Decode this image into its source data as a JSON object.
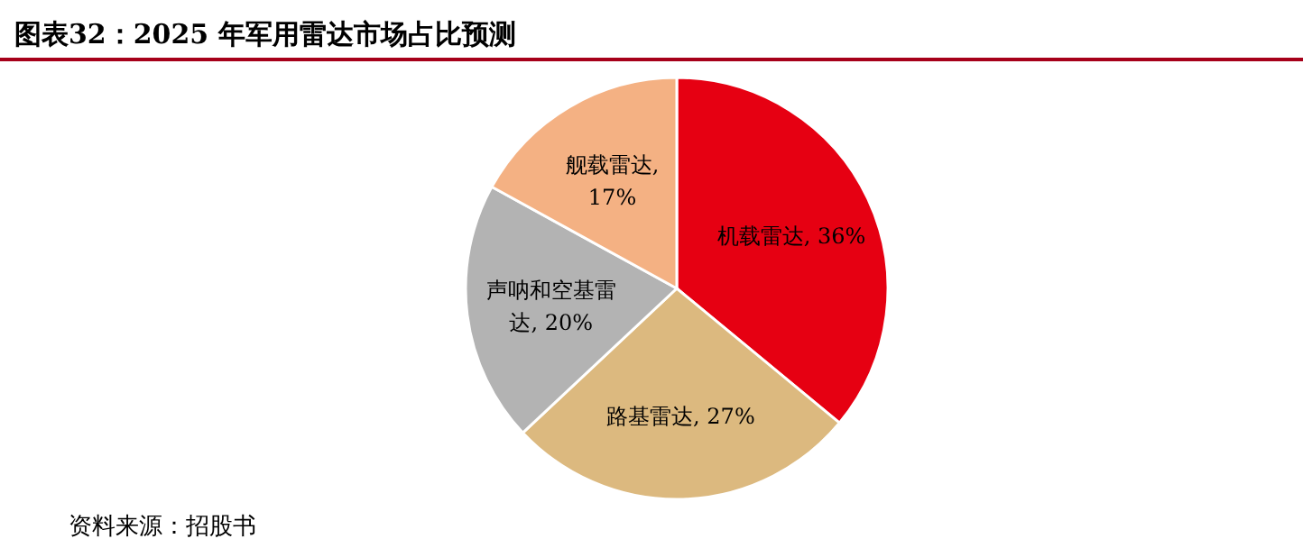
{
  "chart_data": {
    "type": "pie",
    "title": "图表32：2025 年军用雷达市场占比预测",
    "categories": [
      "机载雷达",
      "路基雷达",
      "声呐和空基雷达",
      "舰载雷达"
    ],
    "values": [
      36,
      27,
      20,
      17
    ],
    "value_labels": [
      ", 36%",
      ", 27%",
      ", 20%",
      ", 17%"
    ],
    "colors": [
      "#e60012",
      "#dcb97f",
      "#b3b3b3",
      "#f4b183"
    ],
    "annotations": [
      "资料来源：招股书"
    ]
  }
}
